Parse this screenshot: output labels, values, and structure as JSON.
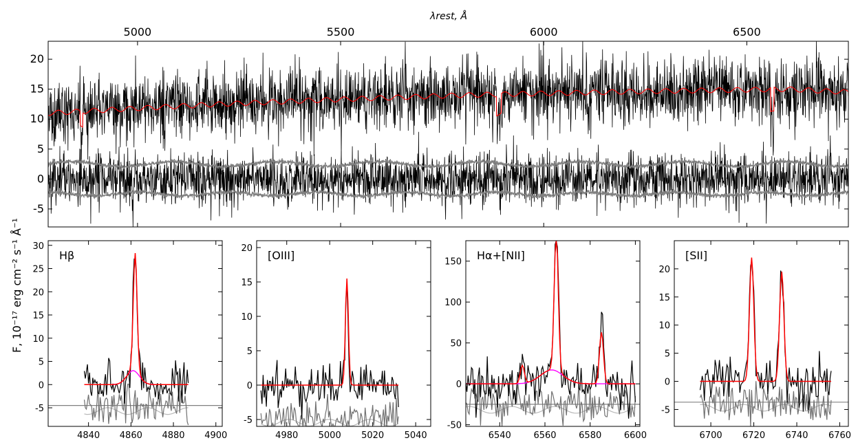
{
  "figure": {
    "top_axis_label": "λrest, Å",
    "y_axis_label": "F, 10⁻¹⁷ erg cm⁻² s⁻¹ Å⁻¹"
  },
  "chart_data": [
    {
      "id": "main",
      "type": "line",
      "title": "",
      "top_xlabel": "λrest, Å",
      "top_ticks": [
        5000,
        5500,
        6000,
        6500
      ],
      "xlim": [
        4780,
        6750
      ],
      "ylim": [
        -8,
        23
      ],
      "y_ticks": [
        -5,
        0,
        5,
        10,
        15,
        20
      ],
      "ylabel": "F, 10⁻¹⁷ erg cm⁻² s⁻¹ Å⁻¹",
      "series": [
        {
          "role": "observed",
          "color": "#000000",
          "level": 12.5,
          "noise_sigma": 3.2
        },
        {
          "role": "model",
          "color": "#ff0000",
          "points": [
            [
              4780,
              11.0
            ],
            [
              5000,
              11.8
            ],
            [
              5200,
              12.5
            ],
            [
              5500,
              13.3
            ],
            [
              5800,
              14.0
            ],
            [
              6000,
              14.3
            ],
            [
              6300,
              14.7
            ],
            [
              6600,
              15.0
            ],
            [
              6750,
              14.5
            ]
          ]
        },
        {
          "role": "residuals",
          "color": "#000000",
          "level": 0,
          "noise_sigma": 2.5
        },
        {
          "role": "error_upper",
          "color": "#808080",
          "level": 2.5
        },
        {
          "role": "error_lower",
          "color": "#808080",
          "level": -2.5
        }
      ]
    },
    {
      "id": "hbeta",
      "type": "line",
      "label": "Hβ",
      "xlim": [
        4821,
        4903
      ],
      "ylim": [
        -9,
        31
      ],
      "x_ticks": [
        4840,
        4860,
        4880,
        4900
      ],
      "y_ticks": [
        -5,
        0,
        5,
        10,
        15,
        20,
        25,
        30
      ],
      "baseline": -4.5,
      "peaks": [
        {
          "center": 4862,
          "amp": 25.5,
          "width": 0.9
        }
      ],
      "broad": {
        "center": 4861,
        "amp": 3.0,
        "width": 3.0
      },
      "data_range": [
        4838,
        4887
      ]
    },
    {
      "id": "oiii",
      "type": "line",
      "label": "[OIII]",
      "xlim": [
        4966,
        5047
      ],
      "ylim": [
        -6,
        21
      ],
      "x_ticks": [
        4980,
        5000,
        5020,
        5040
      ],
      "y_ticks": [
        -5,
        0,
        5,
        10,
        15,
        20
      ],
      "baseline": null,
      "peaks": [
        {
          "center": 5008,
          "amp": 15.5,
          "width": 0.7
        }
      ],
      "broad": null,
      "data_range": [
        4968,
        5032
      ]
    },
    {
      "id": "halpha",
      "type": "line",
      "label": "Hα+[NII]",
      "xlim": [
        6525,
        6602
      ],
      "ylim": [
        -52,
        175
      ],
      "x_ticks": [
        6540,
        6560,
        6580,
        6600
      ],
      "y_ticks": [
        -50,
        0,
        50,
        100,
        150
      ],
      "baseline": -25,
      "peaks": [
        {
          "center": 6550,
          "amp": 22,
          "width": 0.9
        },
        {
          "center": 6565,
          "amp": 168,
          "width": 0.9
        },
        {
          "center": 6585,
          "amp": 63,
          "width": 0.9
        }
      ],
      "broad": {
        "center": 6563,
        "amp": 17,
        "width": 5.0
      },
      "data_range": [
        6525,
        6600
      ]
    },
    {
      "id": "sii",
      "type": "line",
      "label": "[SII]",
      "xlim": [
        6683,
        6764
      ],
      "ylim": [
        -8,
        25
      ],
      "x_ticks": [
        6700,
        6720,
        6740,
        6760
      ],
      "y_ticks": [
        -5,
        0,
        5,
        10,
        15,
        20
      ],
      "baseline": -3.7,
      "peaks": [
        {
          "center": 6719,
          "amp": 22,
          "width": 1.0
        },
        {
          "center": 6733,
          "amp": 19.5,
          "width": 1.0
        }
      ],
      "broad": null,
      "data_range": [
        6695,
        6756
      ]
    }
  ]
}
